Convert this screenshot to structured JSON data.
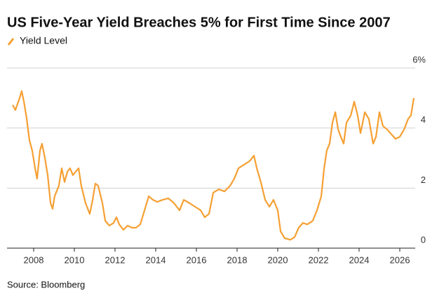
{
  "chart_data": {
    "type": "line",
    "title": "US Five-Year Yield Breaches 5% for First Time Since 2007",
    "source": "Source: Bloomberg",
    "x": [
      2006.97,
      2007.1,
      2007.31,
      2007.41,
      2007.52,
      2007.66,
      2007.79,
      2007.93,
      2008.07,
      2008.17,
      2008.31,
      2008.41,
      2008.55,
      2008.69,
      2008.83,
      2008.93,
      2009.03,
      2009.24,
      2009.38,
      2009.52,
      2009.66,
      2009.79,
      2009.93,
      2010.07,
      2010.21,
      2010.34,
      2010.55,
      2010.76,
      2010.9,
      2011.03,
      2011.17,
      2011.38,
      2011.52,
      2011.72,
      2011.93,
      2012.07,
      2012.21,
      2012.41,
      2012.62,
      2012.83,
      2013.03,
      2013.24,
      2013.45,
      2013.66,
      2013.86,
      2014.07,
      2014.34,
      2014.62,
      2014.9,
      2015.17,
      2015.38,
      2015.66,
      2015.93,
      2016.21,
      2016.41,
      2016.62,
      2016.83,
      2017.1,
      2017.38,
      2017.66,
      2017.86,
      2018.07,
      2018.34,
      2018.62,
      2018.83,
      2018.97,
      2019.17,
      2019.38,
      2019.59,
      2019.79,
      2020.0,
      2020.14,
      2020.34,
      2020.62,
      2020.83,
      2021.03,
      2021.24,
      2021.45,
      2021.72,
      2021.93,
      2022.14,
      2022.28,
      2022.41,
      2022.55,
      2022.69,
      2022.83,
      2022.97,
      2023.1,
      2023.24,
      2023.38,
      2023.59,
      2023.76,
      2023.93,
      2024.07,
      2024.28,
      2024.48,
      2024.69,
      2024.83,
      2025.0,
      2025.17,
      2025.38,
      2025.59,
      2025.79,
      2026.0,
      2026.21,
      2026.41,
      2026.55,
      2026.69
    ],
    "series": [
      {
        "name": "Yield Level",
        "color": "#f5a033",
        "values": [
          4.77,
          4.6,
          5.0,
          5.23,
          4.88,
          4.3,
          3.6,
          3.25,
          2.66,
          2.31,
          3.25,
          3.48,
          3.01,
          2.43,
          1.5,
          1.31,
          1.73,
          2.08,
          2.66,
          2.2,
          2.55,
          2.66,
          2.43,
          2.55,
          2.66,
          2.08,
          1.5,
          1.14,
          1.61,
          2.15,
          2.08,
          1.5,
          0.91,
          0.75,
          0.84,
          1.03,
          0.79,
          0.61,
          0.75,
          0.68,
          0.68,
          0.79,
          1.26,
          1.73,
          1.61,
          1.54,
          1.61,
          1.66,
          1.5,
          1.26,
          1.61,
          1.5,
          1.38,
          1.26,
          1.03,
          1.14,
          1.85,
          1.96,
          1.89,
          2.08,
          2.31,
          2.66,
          2.78,
          2.9,
          3.08,
          2.66,
          2.2,
          1.61,
          1.38,
          1.61,
          1.26,
          0.56,
          0.33,
          0.28,
          0.37,
          0.68,
          0.84,
          0.79,
          0.91,
          1.26,
          1.73,
          2.66,
          3.25,
          3.48,
          4.18,
          4.53,
          3.95,
          3.71,
          3.48,
          4.18,
          4.42,
          4.88,
          4.42,
          3.83,
          4.53,
          4.3,
          3.48,
          3.71,
          4.53,
          4.07,
          3.95,
          3.79,
          3.64,
          3.71,
          3.95,
          4.3,
          4.42,
          5.0
        ]
      }
    ],
    "xlim": [
      2006.69,
      2026.76
    ],
    "xticks": [
      2008,
      2010,
      2012,
      2014,
      2016,
      2018,
      2020,
      2022,
      2024,
      2026
    ],
    "ylim": [
      0,
      6
    ],
    "yticks": [
      0,
      2,
      4,
      {
        "value": 6,
        "label": "6%"
      }
    ],
    "grid": true
  }
}
